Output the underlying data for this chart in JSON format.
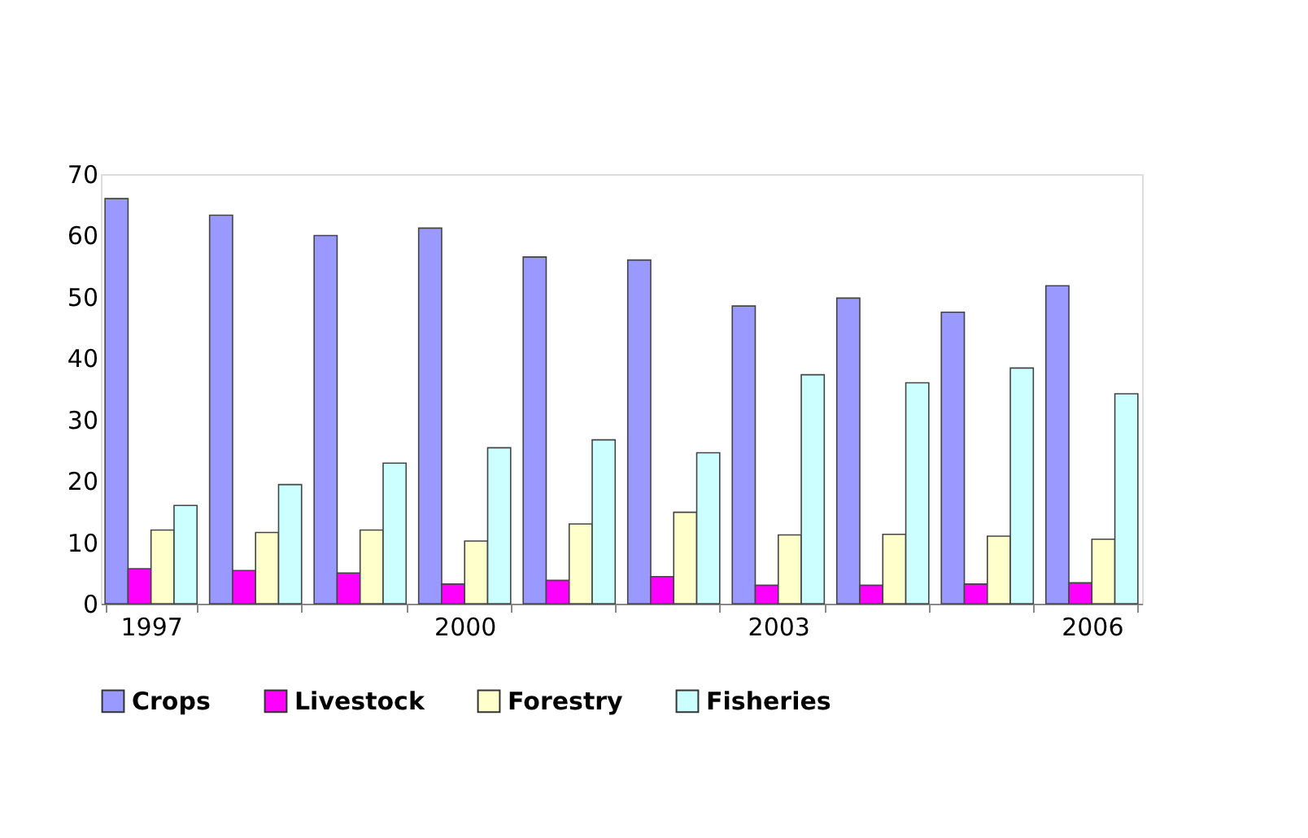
{
  "chart_data": {
    "type": "bar",
    "categories": [
      "1997",
      null,
      null,
      "2000",
      null,
      null,
      "2003",
      null,
      null,
      "2006"
    ],
    "series": [
      {
        "name": "Crops",
        "color": "#9999ff",
        "values": [
          66,
          63.3,
          60,
          61.2,
          56.5,
          56,
          48.5,
          49.8,
          47.5,
          51.8
        ]
      },
      {
        "name": "Livestock",
        "color": "#ff00ff",
        "values": [
          5.7,
          5.4,
          5.0,
          3.2,
          3.8,
          4.4,
          3.0,
          3.0,
          3.2,
          3.4
        ]
      },
      {
        "name": "Forestry",
        "color": "#ffffcc",
        "values": [
          12,
          11.6,
          12,
          10.2,
          13,
          14.9,
          11.2,
          11.3,
          11,
          10.5
        ]
      },
      {
        "name": "Fisheries",
        "color": "#ccffff",
        "values": [
          16,
          19.4,
          22.9,
          25.4,
          26.7,
          24.6,
          37.3,
          36,
          38.4,
          34.2
        ]
      }
    ],
    "ylim": [
      0,
      70
    ],
    "yticks": [
      0,
      10,
      20,
      30,
      40,
      50,
      60,
      70
    ],
    "grid": false,
    "legend": "bottom"
  }
}
